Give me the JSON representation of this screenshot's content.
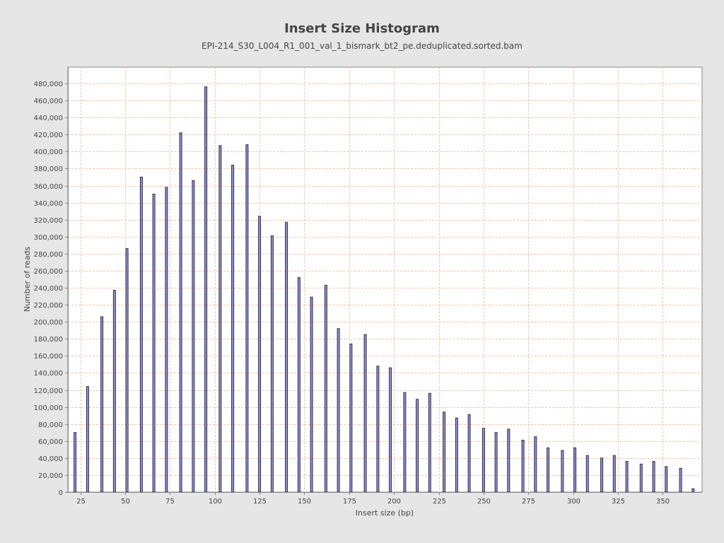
{
  "chart_data": {
    "type": "bar",
    "title": "Insert Size Histogram",
    "subtitle": "EPI-214_S30_L004_R1_001_val_1_bismark_bt2_pe.deduplicated.sorted.bam",
    "xlabel": "Insert size (bp)",
    "ylabel": "Number of reads",
    "xlim": [
      18,
      372
    ],
    "ylim": [
      0,
      480000
    ],
    "x_ticks": [
      25,
      50,
      75,
      100,
      125,
      150,
      175,
      200,
      225,
      250,
      275,
      300,
      325,
      350
    ],
    "y_ticks": [
      0,
      20000,
      40000,
      60000,
      80000,
      100000,
      120000,
      140000,
      160000,
      180000,
      200000,
      220000,
      240000,
      260000,
      280000,
      300000,
      320000,
      340000,
      360000,
      380000,
      400000,
      420000,
      440000,
      460000,
      480000
    ],
    "grid": true,
    "legend": "none",
    "colors": {
      "bar_fill": "#8f8fe8",
      "bar_stroke": "#333333",
      "grid": "#f5c4a3",
      "plot_background": "#ffffff",
      "page_background": "#e6e6e6"
    },
    "x": [
      22,
      29,
      37,
      44,
      51,
      59,
      66,
      73,
      81,
      88,
      95,
      103,
      110,
      118,
      125,
      132,
      140,
      147,
      154,
      162,
      169,
      176,
      184,
      191,
      198,
      206,
      213,
      220,
      228,
      235,
      242,
      250,
      257,
      264,
      272,
      279,
      286,
      294,
      301,
      308,
      316,
      323,
      330,
      338,
      345,
      352,
      360,
      367
    ],
    "values": [
      70000,
      124000,
      206000,
      237000,
      286000,
      370000,
      350000,
      358000,
      422000,
      366000,
      476000,
      407000,
      384000,
      408000,
      324000,
      301000,
      317000,
      252000,
      229000,
      243000,
      192000,
      174000,
      185000,
      148000,
      146000,
      117000,
      109000,
      116000,
      94000,
      87000,
      91000,
      75000,
      70000,
      74000,
      61000,
      65000,
      52000,
      49000,
      52000,
      43000,
      40000,
      43000,
      36000,
      33000,
      36000,
      30000,
      28000,
      4000
    ]
  }
}
